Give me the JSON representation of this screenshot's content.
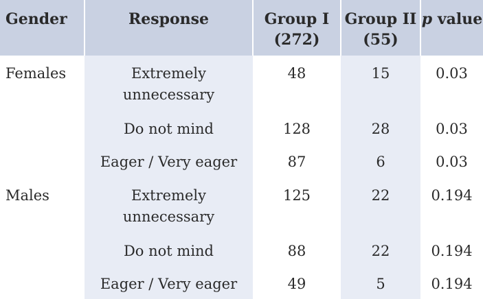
{
  "table": {
    "headers": {
      "gender": "Gender",
      "response": "Response",
      "group1_line1": "Group I",
      "group1_line2": "(272)",
      "group2_line1": "Group II",
      "group2_line2": "(55)",
      "p_italic": "p",
      "p_rest": " value"
    },
    "rows": [
      {
        "gender": "Females",
        "response_l1": "Extremely",
        "response_l2": "unnecessary",
        "g1": "48",
        "g2": "15",
        "p": "0.03"
      },
      {
        "gender": "",
        "response_l1": "Do not mind",
        "response_l2": "",
        "g1": "128",
        "g2": "28",
        "p": "0.03"
      },
      {
        "gender": "",
        "response_l1": "Eager / Very eager",
        "response_l2": "",
        "g1": "87",
        "g2": "6",
        "p": "0.03"
      },
      {
        "gender": "Males",
        "response_l1": "Extremely",
        "response_l2": "unnecessary",
        "g1": "125",
        "g2": "22",
        "p": "0.194"
      },
      {
        "gender": "",
        "response_l1": "Do not mind",
        "response_l2": "",
        "g1": "88",
        "g2": "22",
        "p": "0.194"
      },
      {
        "gender": "",
        "response_l1": "Eager / Very eager",
        "response_l2": "",
        "g1": "49",
        "g2": "5",
        "p": "0.194"
      }
    ]
  }
}
